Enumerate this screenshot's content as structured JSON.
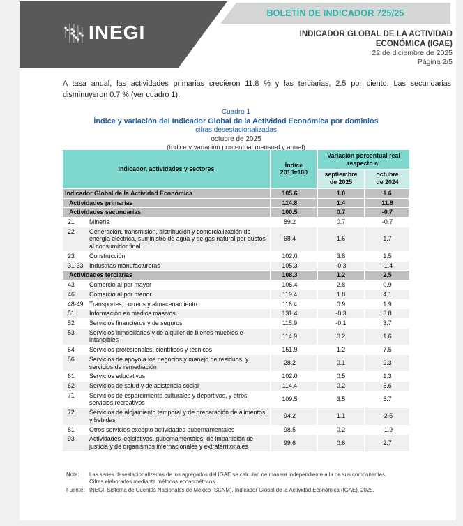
{
  "header": {
    "logo_text": "INEGI",
    "banner_label": "BOLETÍN DE INDICADOR 725/25",
    "title_line1": "INDICADOR GLOBAL DE LA ACTIVIDAD",
    "title_line2": "ECONÓMICA (IGAE)",
    "date": "22 de diciembre de 2025",
    "page_number": "Página 2/5"
  },
  "intro_paragraph": "A tasa anual, las actividades primarias crecieron 11.8 % y las terciarias, 2.5 por ciento. Las secundarias disminuyeron 0.7 % (ver cuadro 1).",
  "table_title": {
    "pretitle": "Cuadro 1",
    "title": "Índice y variación del Indicador Global de la Actividad Económica por dominios",
    "subtitle1": "cifras desestacionalizadas",
    "subtitle2": "octubre de 2025",
    "subtitle3": "(índice y variación porcentual mensual y anual)"
  },
  "table": {
    "headers": {
      "indicator": "Indicador, actividades y sectores",
      "index": "Índice\n2018=100",
      "variation": "Variación porcentual real\nrespecto a:",
      "september": "septiembre\nde 2025",
      "october": "octubre\nde 2024"
    },
    "rows": [
      {
        "kind": "total",
        "code": "",
        "name": "Indicador Global de la Actividad Económica",
        "index": "105.6",
        "monthly": "1.0",
        "annual": "1.6",
        "alt": false
      },
      {
        "kind": "section",
        "code": "",
        "name": "Actividades primarias",
        "index": "114.8",
        "monthly": "1.4",
        "annual": "11.8",
        "alt": false
      },
      {
        "kind": "section",
        "code": "",
        "name": "Actividades secundarias",
        "index": "100.5",
        "monthly": "0.7",
        "annual": "-0.7",
        "alt": false
      },
      {
        "kind": "item",
        "code": "21",
        "name": "Minería",
        "index": "89.2",
        "monthly": "0.7",
        "annual": "-0.7",
        "alt": false
      },
      {
        "kind": "item",
        "code": "22",
        "name": "Generación, transmisión, distribución y comercialización de energía eléctrica, suministro de agua y de gas natural por ductos al consumidor final",
        "index": "68.4",
        "monthly": "1.6",
        "annual": "1.7",
        "alt": true
      },
      {
        "kind": "item",
        "code": "23",
        "name": "Construcción",
        "index": "102.0",
        "monthly": "3.8",
        "annual": "1.5",
        "alt": false
      },
      {
        "kind": "item",
        "code": "31-33",
        "name": "Industrias manufactureras",
        "index": "105.3",
        "monthly": "-0.3",
        "annual": "-1.4",
        "alt": true
      },
      {
        "kind": "section",
        "code": "",
        "name": "Actividades terciarias",
        "index": "108.3",
        "monthly": "1.2",
        "annual": "2.5",
        "alt": false
      },
      {
        "kind": "item",
        "code": "43",
        "name": "Comercio al por mayor",
        "index": "106.4",
        "monthly": "2.8",
        "annual": "0.9",
        "alt": false
      },
      {
        "kind": "item",
        "code": "46",
        "name": "Comercio al por menor",
        "index": "119.4",
        "monthly": "1.8",
        "annual": "4.1",
        "alt": true
      },
      {
        "kind": "item",
        "code": "48-49",
        "name": "Transportes, correos y almacenamiento",
        "index": "116.4",
        "monthly": "0.9",
        "annual": "1.9",
        "alt": false
      },
      {
        "kind": "item",
        "code": "51",
        "name": "Información en medios masivos",
        "index": "131.4",
        "monthly": "-0.3",
        "annual": "3.8",
        "alt": true
      },
      {
        "kind": "item",
        "code": "52",
        "name": "Servicios financieros y de seguros",
        "index": "115.9",
        "monthly": "-0.1",
        "annual": "3.7",
        "alt": false
      },
      {
        "kind": "item",
        "code": "53",
        "name": "Servicios inmobiliarios y de alquiler de bienes muebles e intangibles",
        "index": "114.9",
        "monthly": "0.2",
        "annual": "1.6",
        "alt": true
      },
      {
        "kind": "item",
        "code": "54",
        "name": "Servicios profesionales, científicos y técnicos",
        "index": "151.9",
        "monthly": "1.2",
        "annual": "7.5",
        "alt": false
      },
      {
        "kind": "item",
        "code": "56",
        "name": "Servicios de apoyo a los negocios y manejo de residuos, y servicios de remediación",
        "index": "28.2",
        "monthly": "0.1",
        "annual": "9.3",
        "alt": true
      },
      {
        "kind": "item",
        "code": "61",
        "name": "Servicios educativos",
        "index": "102.0",
        "monthly": "0.5",
        "annual": "1.3",
        "alt": false
      },
      {
        "kind": "item",
        "code": "62",
        "name": "Servicios de salud y de asistencia social",
        "index": "114.4",
        "monthly": "0.2",
        "annual": "5.6",
        "alt": true
      },
      {
        "kind": "item",
        "code": "71",
        "name": "Servicios de esparcimiento culturales y deportivos, y otros servicios recreativos",
        "index": "109.5",
        "monthly": "3.5",
        "annual": "5.7",
        "alt": false
      },
      {
        "kind": "item",
        "code": "72",
        "name": "Servicios de alojamiento temporal y de preparación de alimentos y bebidas",
        "index": "94.2",
        "monthly": "1.1",
        "annual": "-2.5",
        "alt": true
      },
      {
        "kind": "item",
        "code": "81",
        "name": "Otros servicios excepto actividades gubernamentales",
        "index": "98.5",
        "monthly": "0.2",
        "annual": "-1.9",
        "alt": false
      },
      {
        "kind": "item",
        "code": "93",
        "name": "Actividades legislativas, gubernamentales, de impartición de justicia y de organismos internacionales y extraterritoriales",
        "index": "99.6",
        "monthly": "0.6",
        "annual": "2.7",
        "alt": true
      }
    ]
  },
  "notes": {
    "note_label": "Nota:",
    "note_line1": "Las series desestacionalizadas de los agregados del IGAE se calculan de manera independiente a la de sus componentes.",
    "note_line2": "Cifras elaboradas mediante métodos econométricos.",
    "source_label": "Fuente:",
    "source_text": "INEGI. Sistema de Cuentas Nacionales de México (SCNM). Indicador Global de la Actividad Económica (IGAE), 2025."
  },
  "colors": {
    "header_charcoal": "#59595b",
    "banner_gray": "#d4d5d5",
    "banner_teal_text": "#2bb5aa",
    "title_blue": "#2060a8",
    "table_header_teal": "#7ed8cd",
    "table_subheader_teal": "#c9ece7",
    "section_row_gray": "#bfbfbf",
    "alt_row_gray": "#efefef"
  }
}
